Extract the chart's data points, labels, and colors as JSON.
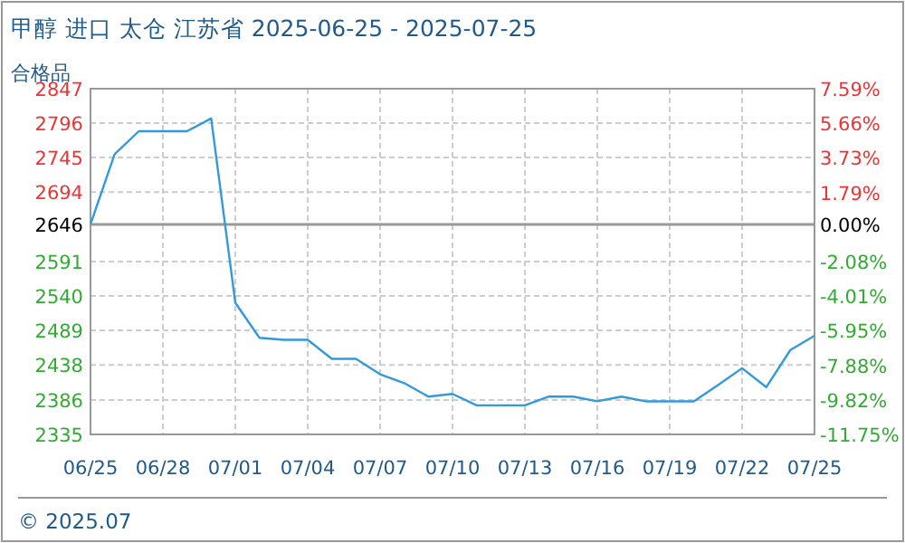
{
  "chart_data": {
    "type": "line",
    "title": "甲醇 进口 太仓 江苏省 2025-06-25 - 2025-07-25",
    "subtitle": "合格品",
    "categories": [
      "06/25",
      null,
      null,
      "06/28",
      null,
      null,
      "07/01",
      null,
      null,
      "07/04",
      null,
      null,
      "07/07",
      null,
      null,
      "07/10",
      null,
      null,
      "07/13",
      null,
      null,
      "07/16",
      null,
      null,
      "07/19",
      null,
      null,
      "07/22",
      null,
      null,
      "07/25"
    ],
    "series": [
      {
        "color": "#3399dd",
        "values": [
          2646,
          2750,
          2784,
          2784,
          2784,
          2803,
          2530,
          2478,
          2475,
          2475,
          2447,
          2447,
          2424,
          2411,
          2391,
          2395,
          2378,
          2378,
          2378,
          2391,
          2391,
          2384,
          2391,
          2384,
          2384,
          2384,
          2408,
          2433,
          2405,
          2460,
          2481
        ]
      }
    ],
    "ylim": [
      2335,
      2847
    ],
    "yticks": [
      2335,
      2386,
      2438,
      2489,
      2540,
      2591,
      2646,
      2694,
      2745,
      2796,
      2847
    ],
    "y2lim": [
      -11.75,
      7.59
    ],
    "y2ticks": [
      {
        "value": -11.75,
        "label": "-11.75%"
      },
      {
        "value": -9.82,
        "label": "-9.82%"
      },
      {
        "value": -7.88,
        "label": "-7.88%"
      },
      {
        "value": -5.95,
        "label": "-5.95%"
      },
      {
        "value": -4.01,
        "label": "-4.01%"
      },
      {
        "value": -2.08,
        "label": "-2.08%"
      },
      {
        "value": 0,
        "label": "0.00%"
      },
      {
        "value": 1.79,
        "label": "1.79%"
      },
      {
        "value": 3.73,
        "label": "3.73%"
      },
      {
        "value": 5.66,
        "label": "5.66%"
      },
      {
        "value": 7.59,
        "label": "7.59%"
      }
    ],
    "ref_lines": [
      {
        "axis": "y",
        "value": 2646,
        "color": "#999999"
      }
    ],
    "grid": true,
    "annotations": [
      "© 2025.07"
    ]
  }
}
